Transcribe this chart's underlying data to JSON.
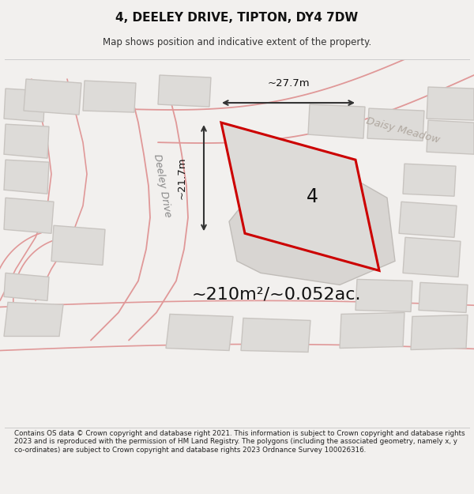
{
  "title": "4, DEELEY DRIVE, TIPTON, DY4 7DW",
  "subtitle": "Map shows position and indicative extent of the property.",
  "area_text": "~210m²/~0.052ac.",
  "dim_width": "~27.7m",
  "dim_height": "~21.7m",
  "label_number": "4",
  "street_label1": "Deeley Drive",
  "street_label2": "Daisy Meadow",
  "footer_text": "Contains OS data © Crown copyright and database right 2021. This information is subject to Crown copyright and database rights 2023 and is reproduced with the permission of HM Land Registry. The polygons (including the associated geometry, namely x, y co-ordinates) are subject to Crown copyright and database rights 2023 Ordnance Survey 100026316.",
  "bg_color": "#f2f0ee",
  "map_bg": "#eeece9",
  "red_color": "#cc0000",
  "light_red": "#e8a0a0",
  "road_color": "#e09898",
  "building_fill": "#dddbd8",
  "building_outline": "#c8c4c0",
  "parcel_fill": "#d8d5d2",
  "parcel_outline": "#c0bcb8",
  "prop_fill": "#dddbd8",
  "arrow_color": "#333333",
  "text_color": "#111111",
  "footer_color": "#222222",
  "label_color": "#888888"
}
